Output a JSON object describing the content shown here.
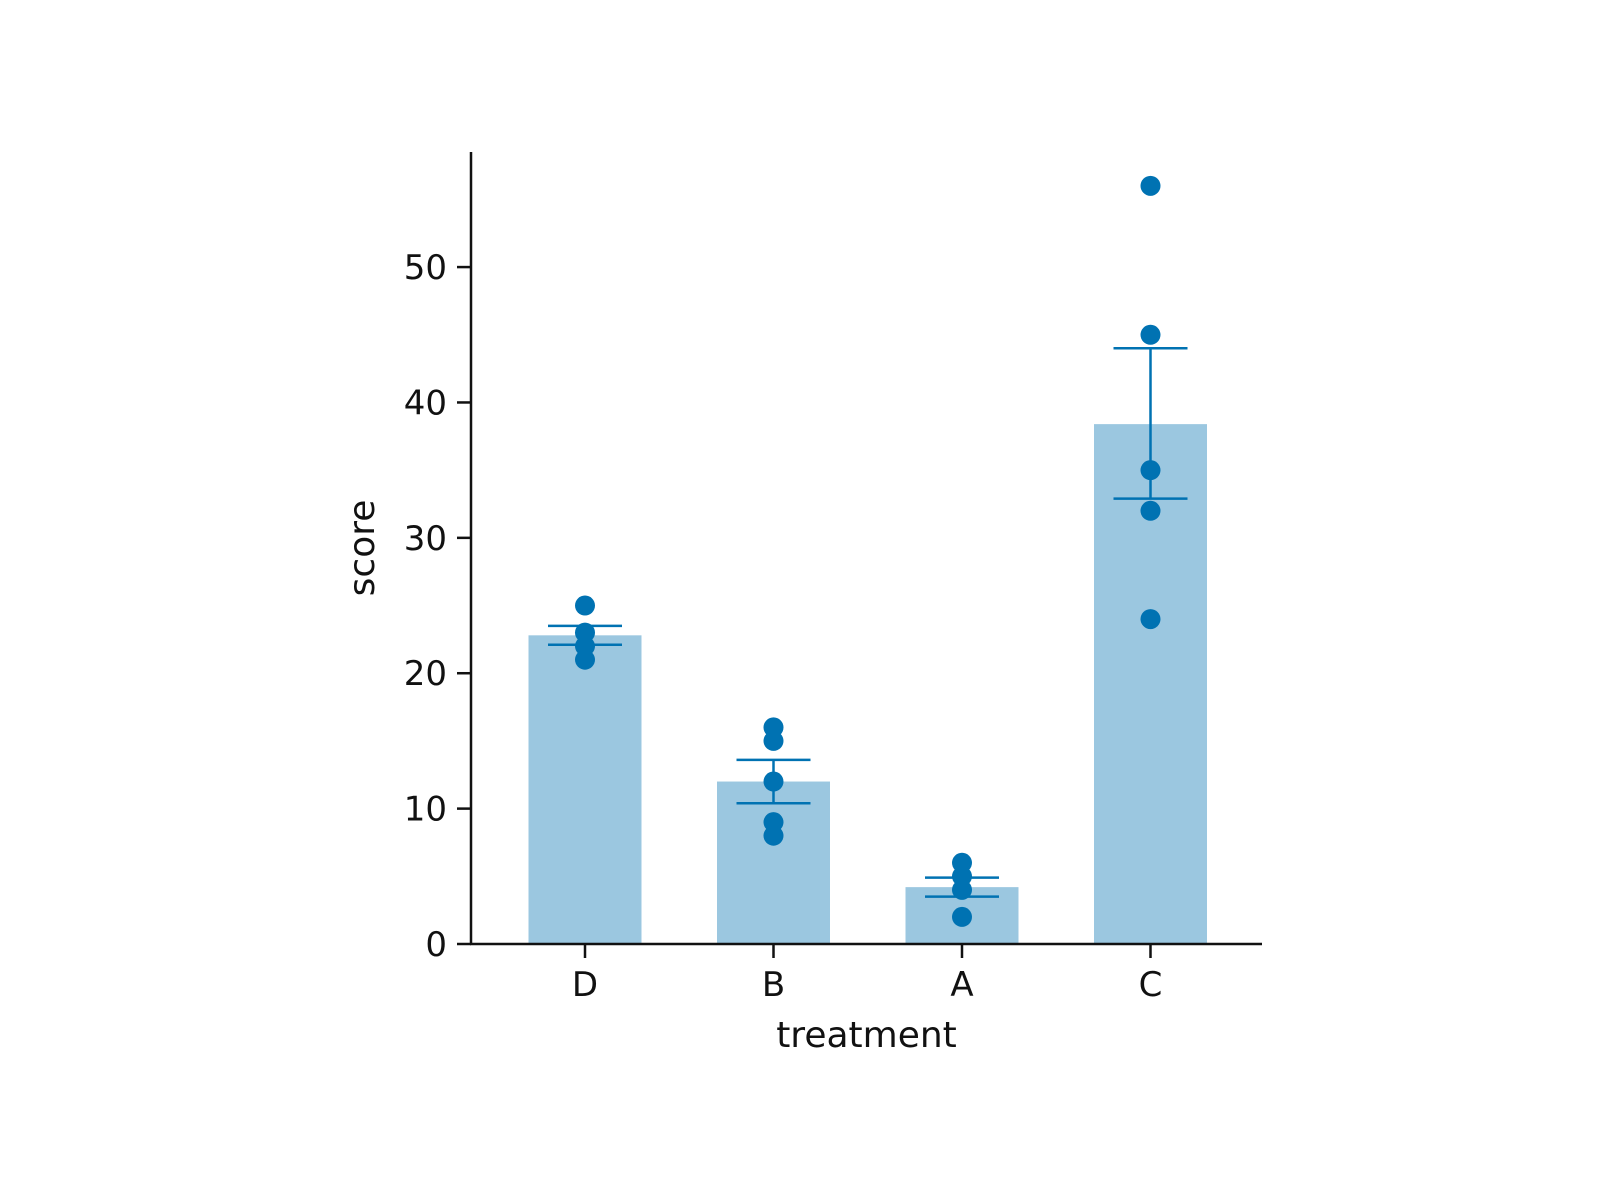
{
  "chart_data": {
    "type": "bar",
    "title": "",
    "xlabel": "treatment",
    "ylabel": "score",
    "categories": [
      "D",
      "B",
      "A",
      "C"
    ],
    "values": [
      22.8,
      12.0,
      4.2,
      38.4
    ],
    "error_bars": [
      {
        "low": 22.1,
        "high": 23.5
      },
      {
        "low": 10.4,
        "high": 13.6
      },
      {
        "low": 3.5,
        "high": 4.9
      },
      {
        "low": 32.9,
        "high": 44.0
      }
    ],
    "points": [
      [
        25,
        23,
        22,
        21
      ],
      [
        16,
        15,
        12,
        9,
        8
      ],
      [
        6,
        5,
        4,
        2
      ],
      [
        56,
        45,
        35,
        32,
        24
      ]
    ],
    "ylim": [
      0,
      58.5
    ],
    "yticks": [
      0,
      10,
      20,
      30,
      40,
      50
    ],
    "grid": false,
    "colors": {
      "bar": "#9bc7e0",
      "point": "#0072b2",
      "axis": "#111111"
    }
  }
}
